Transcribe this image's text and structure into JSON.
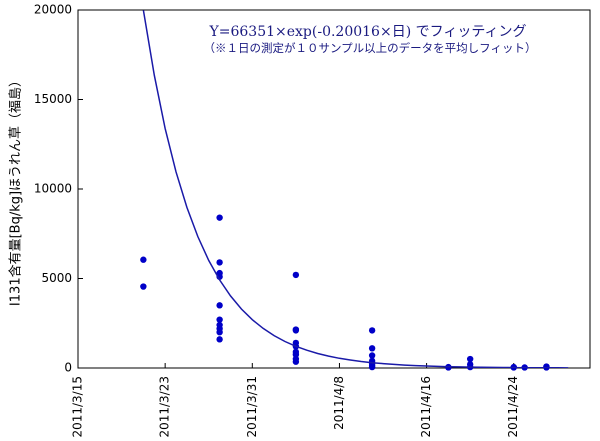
{
  "chart_data": {
    "type": "scatter",
    "ylabel": "I131含有量[Bq/kg]ほうれん草（福島）",
    "annotations": [
      "Y=66351×exp(-0.20016×日) でフィッティング",
      "（※１日の測定が１０サンプル以上のデータを平均しフィット）"
    ],
    "xlim": [
      "2011/3/15",
      "2011/5/1"
    ],
    "xticks": [
      "2011/3/15",
      "2011/3/23",
      "2011/3/31",
      "2011/4/8",
      "2011/4/16",
      "2011/4/24"
    ],
    "ylim": [
      0,
      20000
    ],
    "yticks": [
      0,
      5000,
      10000,
      15000,
      20000
    ],
    "grid": false,
    "series": [
      {
        "type": "scatter",
        "color": "#0000c8",
        "x": [
          "2011/3/21",
          "2011/3/21",
          "2011/3/28",
          "2011/3/28",
          "2011/3/28",
          "2011/3/28",
          "2011/3/28",
          "2011/3/28",
          "2011/3/28",
          "2011/3/28",
          "2011/3/28",
          "2011/3/28",
          "2011/4/4",
          "2011/4/4",
          "2011/4/4",
          "2011/4/4",
          "2011/4/4",
          "2011/4/4",
          "2011/4/4",
          "2011/4/4",
          "2011/4/4",
          "2011/4/11",
          "2011/4/11",
          "2011/4/11",
          "2011/4/11",
          "2011/4/11",
          "2011/4/11",
          "2011/4/11",
          "2011/4/18",
          "2011/4/18",
          "2011/4/20",
          "2011/4/20",
          "2011/4/20",
          "2011/4/24",
          "2011/4/24",
          "2011/4/25",
          "2011/4/27",
          "2011/4/27"
        ],
        "values": [
          6050,
          4550,
          8400,
          5900,
          5300,
          5100,
          3500,
          2700,
          2400,
          2200,
          2000,
          1600,
          5200,
          2150,
          2100,
          1400,
          1200,
          900,
          750,
          500,
          350,
          2100,
          1100,
          700,
          400,
          250,
          150,
          50,
          50,
          30,
          500,
          200,
          50,
          50,
          30,
          30,
          80,
          30
        ]
      },
      {
        "type": "line",
        "color": "#1a1aa8",
        "x": [
          "2011/3/21",
          "2011/3/22",
          "2011/3/23",
          "2011/3/24",
          "2011/3/25",
          "2011/3/26",
          "2011/3/27",
          "2011/3/28",
          "2011/3/29",
          "2011/3/30",
          "2011/3/31",
          "2011/4/1",
          "2011/4/2",
          "2011/4/3",
          "2011/4/4",
          "2011/4/5",
          "2011/4/6",
          "2011/4/7",
          "2011/4/8",
          "2011/4/9",
          "2011/4/10",
          "2011/4/11",
          "2011/4/12",
          "2011/4/13",
          "2011/4/14",
          "2011/4/15",
          "2011/4/16",
          "2011/4/17",
          "2011/4/18",
          "2011/4/19",
          "2011/4/20",
          "2011/4/21",
          "2011/4/22",
          "2011/4/23",
          "2011/4/24",
          "2011/4/25",
          "2011/4/26",
          "2011/4/27",
          "2011/4/28",
          "2011/4/29"
        ],
        "values": [
          19985,
          16359,
          13391,
          10961,
          8973,
          7345,
          6012,
          4921,
          4029,
          3298,
          2699,
          2210,
          1809,
          1481,
          1212,
          992,
          812,
          665,
          544,
          445,
          365,
          298,
          244,
          200,
          164,
          134,
          110,
          90,
          74,
          60,
          49,
          40,
          33,
          27,
          22,
          18,
          15,
          12,
          10,
          8
        ]
      }
    ]
  }
}
